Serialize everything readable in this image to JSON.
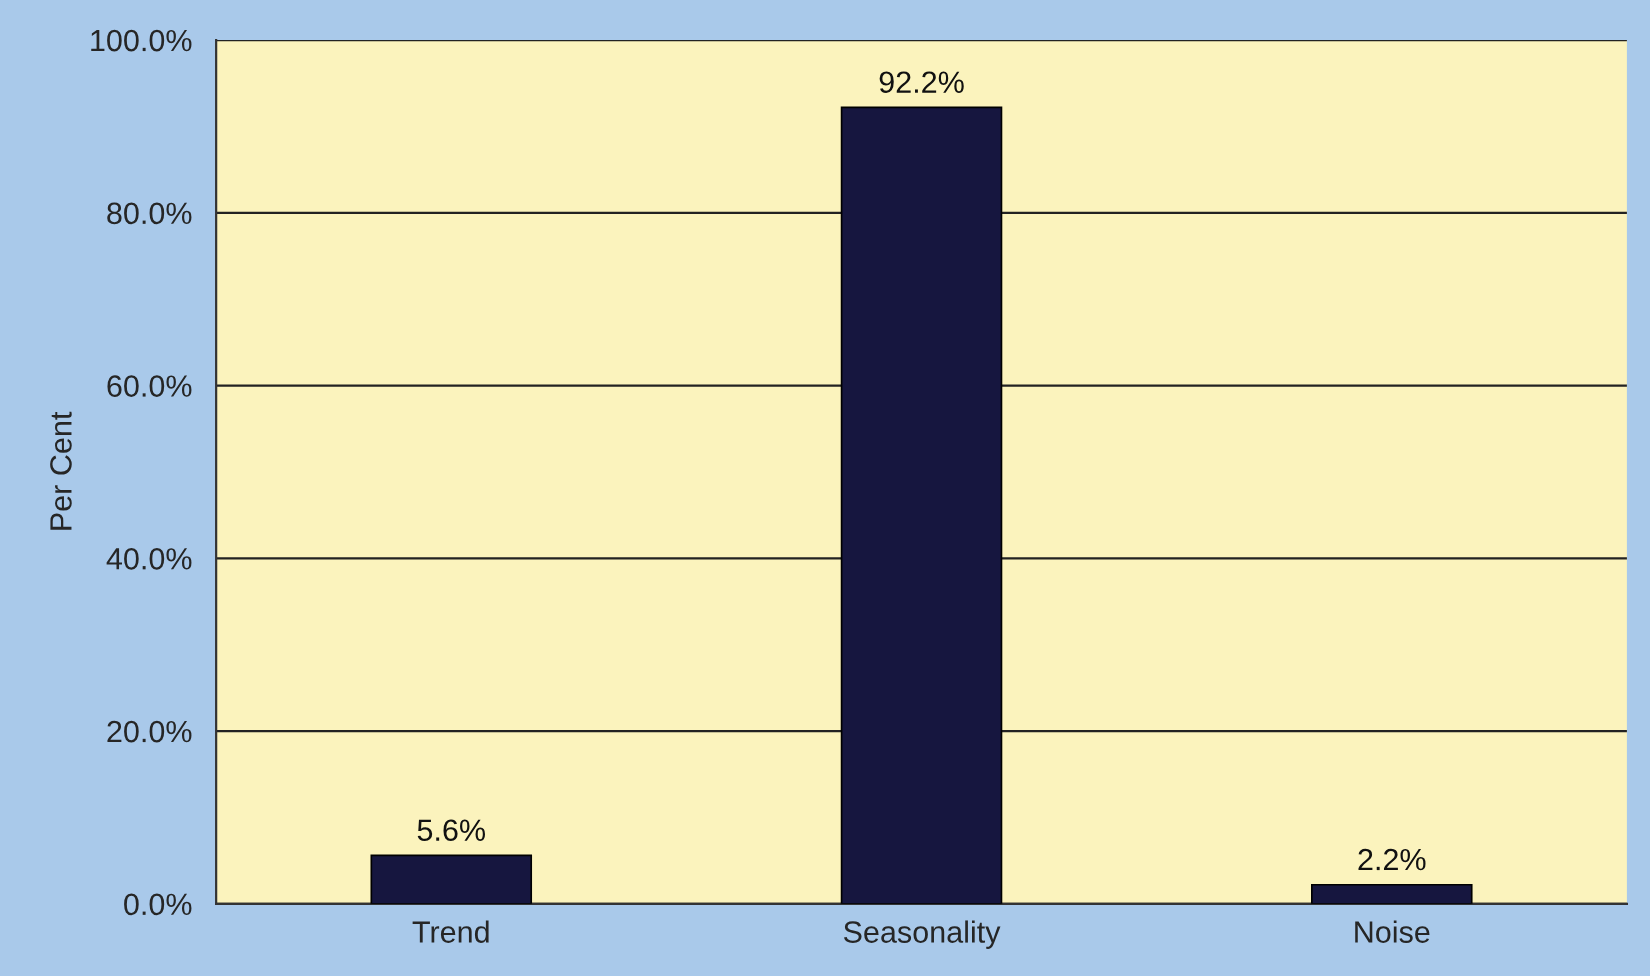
{
  "chart_data": {
    "type": "bar",
    "ylabel": "Per Cent",
    "categories": [
      "Trend",
      "Seasonality",
      "Noise"
    ],
    "values": [
      5.6,
      92.2,
      2.2
    ],
    "color": "#16163f",
    "value_labels": [
      "5.6%",
      "92.2%",
      "2.2%"
    ],
    "ylim": [
      0,
      100
    ],
    "yticks": [
      {
        "value": 0,
        "label": "0.0%"
      },
      {
        "value": 20,
        "label": "20.0%"
      },
      {
        "value": 40,
        "label": "40.0%"
      },
      {
        "value": 60,
        "label": "60.0%"
      },
      {
        "value": 80,
        "label": "80.0%"
      },
      {
        "value": 100,
        "label": "100.0%"
      }
    ],
    "grid": "y"
  }
}
